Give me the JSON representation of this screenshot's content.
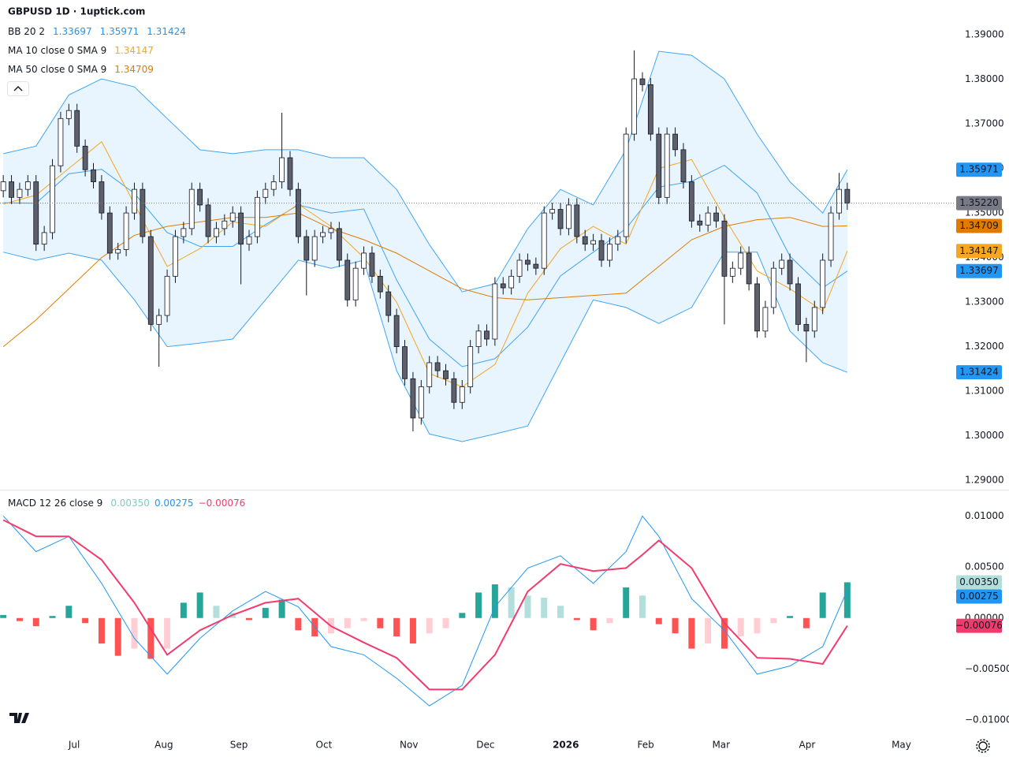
{
  "chart_data": [
    {
      "type": "candlestick",
      "title": "GBPUSD 1D · 1uptick.com",
      "up_color": "#ffffff",
      "down_color": "#5d606b",
      "border_color": "#131722",
      "open": [
        1.355,
        1.357,
        1.3535,
        1.3553,
        1.357,
        1.343,
        1.3456,
        1.3606,
        1.3712,
        1.373,
        1.365,
        1.3597,
        1.357,
        1.35,
        1.341,
        1.3418,
        1.35,
        1.3553,
        1.3447,
        1.325,
        1.327,
        1.3358,
        1.3447,
        1.3465,
        1.3553,
        1.3518,
        1.3447,
        1.3465,
        1.3482,
        1.35,
        1.343,
        1.3447,
        1.3535,
        1.3553,
        1.357,
        1.3624,
        1.3553,
        1.3447,
        1.3394,
        1.3447,
        1.3456,
        1.3465,
        1.3394,
        1.3305,
        1.3376,
        1.341,
        1.3358,
        1.3323,
        1.327,
        1.32,
        1.3128,
        1.304,
        1.311,
        1.3164,
        1.3146,
        1.3128,
        1.3075,
        1.311,
        1.32,
        1.3235,
        1.3217,
        1.3341,
        1.3332,
        1.3358,
        1.3394,
        1.3385,
        1.3376,
        1.35,
        1.3508,
        1.3465,
        1.3518,
        1.3447,
        1.343,
        1.3438,
        1.3394,
        1.343,
        1.3447,
        1.3677,
        1.3801,
        1.3788,
        1.3677,
        1.3535,
        1.3677,
        1.3642,
        1.357,
        1.3482,
        1.3473,
        1.35,
        1.3482,
        1.3358,
        1.3376,
        1.341,
        1.3341,
        1.3235,
        1.3288,
        1.3376,
        1.3394,
        1.3341,
        1.325,
        1.3235,
        1.3288,
        1.3394,
        1.35,
        1.3553
      ],
      "high": [
        1.3585,
        1.3585,
        1.3568,
        1.3585,
        1.3585,
        1.3471,
        1.3621,
        1.3727,
        1.3745,
        1.3745,
        1.3665,
        1.3612,
        1.3585,
        1.3515,
        1.3433,
        1.3515,
        1.3568,
        1.3568,
        1.3462,
        1.3285,
        1.3373,
        1.3462,
        1.348,
        1.3568,
        1.3568,
        1.3533,
        1.348,
        1.3497,
        1.3515,
        1.3515,
        1.3462,
        1.355,
        1.3568,
        1.3585,
        1.3725,
        1.3639,
        1.3568,
        1.3462,
        1.3462,
        1.3471,
        1.348,
        1.348,
        1.3409,
        1.3391,
        1.3425,
        1.3425,
        1.3373,
        1.3338,
        1.3285,
        1.3215,
        1.3143,
        1.3125,
        1.3179,
        1.3179,
        1.3161,
        1.3143,
        1.3125,
        1.3215,
        1.325,
        1.325,
        1.3356,
        1.3356,
        1.3373,
        1.3409,
        1.3409,
        1.34,
        1.3515,
        1.3523,
        1.3523,
        1.3533,
        1.3533,
        1.3462,
        1.3453,
        1.3453,
        1.3445,
        1.3462,
        1.3692,
        1.3865,
        1.3816,
        1.3803,
        1.3692,
        1.3692,
        1.3692,
        1.3657,
        1.3585,
        1.3497,
        1.3515,
        1.3515,
        1.3497,
        1.3391,
        1.3425,
        1.3425,
        1.3356,
        1.3303,
        1.3391,
        1.3409,
        1.3409,
        1.3356,
        1.3265,
        1.3303,
        1.3409,
        1.3515,
        1.359,
        1.3568
      ],
      "low": [
        1.3535,
        1.352,
        1.352,
        1.3538,
        1.3415,
        1.3415,
        1.3441,
        1.3591,
        1.3697,
        1.3635,
        1.3582,
        1.3555,
        1.3485,
        1.3395,
        1.3395,
        1.3403,
        1.3485,
        1.3432,
        1.3235,
        1.3155,
        1.3255,
        1.3343,
        1.3432,
        1.345,
        1.3503,
        1.3432,
        1.3432,
        1.345,
        1.3467,
        1.334,
        1.3415,
        1.3432,
        1.352,
        1.3538,
        1.3555,
        1.3538,
        1.3432,
        1.3315,
        1.3379,
        1.3432,
        1.3441,
        1.3379,
        1.329,
        1.329,
        1.3361,
        1.3343,
        1.3308,
        1.3255,
        1.3185,
        1.3113,
        1.301,
        1.3025,
        1.3095,
        1.3131,
        1.3113,
        1.306,
        1.306,
        1.3095,
        1.3185,
        1.3202,
        1.3202,
        1.3317,
        1.3317,
        1.3343,
        1.337,
        1.3361,
        1.3361,
        1.3485,
        1.345,
        1.345,
        1.3432,
        1.3415,
        1.3415,
        1.3379,
        1.3379,
        1.3415,
        1.3432,
        1.3662,
        1.3773,
        1.3662,
        1.352,
        1.352,
        1.3627,
        1.3555,
        1.3467,
        1.3458,
        1.3458,
        1.3467,
        1.325,
        1.3343,
        1.3361,
        1.3326,
        1.322,
        1.322,
        1.3273,
        1.3361,
        1.3326,
        1.3235,
        1.3165,
        1.322,
        1.3273,
        1.3379,
        1.3485,
        1.3507
      ],
      "close": [
        1.357,
        1.3535,
        1.3553,
        1.357,
        1.343,
        1.3456,
        1.3606,
        1.3712,
        1.373,
        1.365,
        1.3597,
        1.357,
        1.35,
        1.341,
        1.3418,
        1.35,
        1.3553,
        1.3447,
        1.325,
        1.327,
        1.3358,
        1.3447,
        1.3465,
        1.3553,
        1.3518,
        1.3447,
        1.3465,
        1.3482,
        1.35,
        1.343,
        1.3447,
        1.3535,
        1.3553,
        1.357,
        1.3624,
        1.3553,
        1.3447,
        1.3394,
        1.3447,
        1.3456,
        1.3465,
        1.3394,
        1.3305,
        1.3376,
        1.341,
        1.3358,
        1.3323,
        1.327,
        1.32,
        1.3128,
        1.304,
        1.311,
        1.3164,
        1.3146,
        1.3128,
        1.3075,
        1.311,
        1.32,
        1.3235,
        1.3217,
        1.3341,
        1.3332,
        1.3358,
        1.3394,
        1.3385,
        1.3376,
        1.35,
        1.3508,
        1.3465,
        1.3518,
        1.3447,
        1.343,
        1.3438,
        1.3394,
        1.343,
        1.3447,
        1.3677,
        1.3801,
        1.3788,
        1.3677,
        1.3535,
        1.3677,
        1.3642,
        1.357,
        1.3482,
        1.3473,
        1.35,
        1.3482,
        1.3358,
        1.3376,
        1.341,
        1.3341,
        1.3235,
        1.3288,
        1.3376,
        1.3394,
        1.3341,
        1.325,
        1.3235,
        1.3288,
        1.3394,
        1.35,
        1.3553,
        1.3522
      ],
      "last_price": {
        "value": 1.3522,
        "label": "1.35220",
        "color": "#787b86"
      },
      "xlim": [
        -0.4,
        116
      ],
      "xticks": [
        {
          "value": 8.65,
          "label": "Jul"
        },
        {
          "value": 19.6,
          "label": "Aug"
        },
        {
          "value": 28.75,
          "label": "Sep"
        },
        {
          "value": 39.13,
          "label": "Oct"
        },
        {
          "value": 49.5,
          "label": "Nov"
        },
        {
          "value": 58.85,
          "label": "Dec"
        },
        {
          "value": 68.65,
          "label": "2026",
          "bold": true
        },
        {
          "value": 78.4,
          "label": "Feb"
        },
        {
          "value": 87.6,
          "label": "Mar"
        },
        {
          "value": 98.1,
          "label": "Apr"
        },
        {
          "value": 109.6,
          "label": "May"
        }
      ],
      "ylim": [
        1.2879,
        1.3978
      ],
      "yticks": [
        {
          "value": 1.39,
          "label": "1.39000"
        },
        {
          "value": 1.38,
          "label": "1.38000"
        },
        {
          "value": 1.37,
          "label": "1.37000"
        },
        {
          "value": 1.36,
          "label": "1.36000"
        },
        {
          "value": 1.35,
          "label": "1.35000"
        },
        {
          "value": 1.34,
          "label": "1.34000"
        },
        {
          "value": 1.33,
          "label": "1.33000"
        },
        {
          "value": 1.32,
          "label": "1.32000"
        },
        {
          "value": 1.31,
          "label": "1.31000"
        },
        {
          "value": 1.3,
          "label": "1.30000"
        },
        {
          "value": 1.29,
          "label": "1.29000"
        }
      ],
      "grid": true,
      "overlays": [
        {
          "type": "band",
          "name": "BB 20 2",
          "color": "#2196f3",
          "fill": "rgba(33,150,243,0.1)",
          "x": [
            0,
            4,
            8,
            12,
            16,
            20,
            24,
            28,
            32,
            36,
            40,
            44,
            48,
            52,
            56,
            60,
            64,
            68,
            72,
            76,
            80,
            84,
            88,
            92,
            96,
            100,
            103
          ],
          "lines": [
            {
              "values": [
                1.3523,
                1.3522,
                1.3588,
                1.3598,
                1.3544,
                1.3456,
                1.3425,
                1.3425,
                1.3474,
                1.3518,
                1.35,
                1.3509,
                1.335,
                1.3217,
                1.3155,
                1.3173,
                1.3244,
                1.3359,
                1.3412,
                1.3465,
                1.3558,
                1.3571,
                1.3607,
                1.3545,
                1.3403,
                1.3332,
                1.33697
              ],
              "last": {
                "value": 1.33697,
                "label": "1.33697"
              }
            },
            {
              "values": [
                1.3633,
                1.365,
                1.3765,
                1.3801,
                1.3783,
                1.3712,
                1.3642,
                1.3633,
                1.3642,
                1.3642,
                1.3624,
                1.3624,
                1.3553,
                1.3429,
                1.3323,
                1.3341,
                1.3465,
                1.3553,
                1.3518,
                1.3642,
                1.3863,
                1.3854,
                1.3801,
                1.3677,
                1.357,
                1.35,
                1.35971
              ],
              "last": {
                "value": 1.35971,
                "label": "1.35971"
              }
            },
            {
              "values": [
                1.3412,
                1.3394,
                1.341,
                1.3394,
                1.3305,
                1.32,
                1.3208,
                1.3217,
                1.3305,
                1.3394,
                1.3376,
                1.3394,
                1.3146,
                1.3004,
                1.2987,
                1.3004,
                1.3022,
                1.3164,
                1.3305,
                1.3288,
                1.3252,
                1.3288,
                1.3412,
                1.3412,
                1.3235,
                1.3164,
                1.31424
              ],
              "last": {
                "value": 1.31424,
                "label": "1.31424"
              }
            }
          ]
        },
        {
          "type": "line",
          "name": "MA 10 close 0 SMA 9",
          "color": "#f5a623",
          "x": [
            0,
            4,
            8,
            12,
            16,
            20,
            24,
            28,
            32,
            36,
            40,
            44,
            48,
            52,
            56,
            60,
            64,
            68,
            72,
            76,
            80,
            84,
            88,
            92,
            96,
            100,
            103
          ],
          "values": [
            1.352,
            1.354,
            1.36,
            1.366,
            1.352,
            1.338,
            1.342,
            1.348,
            1.347,
            1.352,
            1.347,
            1.34,
            1.33,
            1.314,
            1.311,
            1.316,
            1.332,
            1.342,
            1.347,
            1.343,
            1.36,
            1.362,
            1.349,
            1.337,
            1.333,
            1.328,
            1.34147
          ],
          "last": {
            "value": 1.34147,
            "label": "1.34147"
          }
        },
        {
          "type": "line",
          "name": "MA 50 close 0 SMA 9",
          "color": "#e07b00",
          "x": [
            0,
            4,
            8,
            12,
            16,
            20,
            24,
            28,
            32,
            36,
            40,
            44,
            48,
            52,
            56,
            60,
            64,
            68,
            72,
            76,
            80,
            84,
            88,
            92,
            96,
            100,
            103
          ],
          "values": [
            1.32,
            1.326,
            1.333,
            1.34,
            1.345,
            1.347,
            1.348,
            1.349,
            1.349,
            1.35,
            1.3465,
            1.344,
            1.341,
            1.337,
            1.333,
            1.331,
            1.3305,
            1.331,
            1.3315,
            1.332,
            1.338,
            1.344,
            1.347,
            1.3485,
            1.349,
            1.347,
            1.34709
          ],
          "last": {
            "value": 1.34709,
            "label": "1.34709"
          }
        }
      ]
    },
    {
      "type": "macd",
      "name": "MACD 12 26 close 9",
      "ylim": [
        -0.0113,
        0.0125
      ],
      "yticks": [
        {
          "value": 0.01,
          "label": "0.01000"
        },
        {
          "value": 0.005,
          "label": "0.00500"
        },
        {
          "value": 0,
          "label": "0.00000"
        },
        {
          "value": -0.005,
          "label": "−0.00500"
        },
        {
          "value": -0.01,
          "label": "−0.01000"
        }
      ],
      "histogram": {
        "colors": [
          "#26a69a",
          "#b2dfdb",
          "#ffcdd2",
          "#ff5252"
        ],
        "badge_color": "#b2dfdb",
        "badge_text_color": "#131722",
        "legend_color": "#80cbc4",
        "x": [
          0,
          2,
          4,
          6,
          8,
          10,
          12,
          14,
          16,
          18,
          20,
          22,
          24,
          26,
          28,
          30,
          32,
          34,
          36,
          38,
          40,
          42,
          44,
          46,
          48,
          50,
          52,
          54,
          56,
          58,
          60,
          62,
          64,
          66,
          68,
          70,
          72,
          74,
          76,
          78,
          80,
          82,
          84,
          86,
          88,
          90,
          92,
          94,
          96,
          98,
          100,
          103
        ],
        "values": [
          0.0003,
          -0.0003,
          -0.0008,
          0.0002,
          0.0012,
          -0.0005,
          -0.0025,
          -0.0037,
          -0.003,
          -0.004,
          -0.003,
          0.0015,
          0.0025,
          0.0012,
          0.0005,
          -0.0002,
          0.001,
          0.0018,
          -0.0012,
          -0.0018,
          -0.0015,
          -0.001,
          -0.0003,
          -0.001,
          -0.0018,
          -0.0025,
          -0.0015,
          -0.001,
          0.0005,
          0.0025,
          0.0033,
          0.003,
          0.0022,
          0.002,
          0.0012,
          -0.0002,
          -0.0012,
          -0.0005,
          0.003,
          0.0022,
          -0.0006,
          -0.0015,
          -0.003,
          -0.0025,
          -0.003,
          -0.0018,
          -0.0015,
          -0.0005,
          0.0002,
          -0.001,
          0.0025,
          0.0035
        ],
        "last": {
          "value": 0.0035,
          "label": "0.00350"
        }
      },
      "macd": {
        "color": "#2196f3",
        "x": [
          0,
          4,
          8,
          12,
          16,
          20,
          24,
          28,
          32,
          36,
          40,
          44,
          48,
          52,
          56,
          60,
          64,
          68,
          72,
          76,
          78,
          80,
          84,
          88,
          92,
          96,
          100,
          103
        ],
        "values": [
          0.01,
          0.0065,
          0.008,
          0.0034,
          -0.002,
          -0.0055,
          -0.002,
          0.0007,
          0.0026,
          0.0011,
          -0.0028,
          -0.0036,
          -0.0059,
          -0.0086,
          -0.0066,
          0.0011,
          0.0049,
          0.0061,
          0.0034,
          0.0065,
          0.01,
          0.008,
          0.0019,
          -0.0012,
          -0.0055,
          -0.0047,
          -0.0028,
          0.00275
        ],
        "last": {
          "value": 0.00275,
          "label": "0.00275"
        }
      },
      "signal": {
        "color": "#f23b6d",
        "x": [
          0,
          4,
          8,
          12,
          16,
          20,
          24,
          28,
          32,
          36,
          40,
          44,
          48,
          52,
          56,
          60,
          64,
          68,
          72,
          76,
          78,
          80,
          84,
          88,
          92,
          96,
          100,
          103
        ],
        "values": [
          0.0096,
          0.008,
          0.008,
          0.0057,
          0.0015,
          -0.0036,
          -0.0012,
          0.0003,
          0.0015,
          0.0019,
          -0.0008,
          -0.0024,
          -0.0039,
          -0.007,
          -0.007,
          -0.0036,
          0.0026,
          0.0053,
          0.0046,
          0.0049,
          0.0062,
          0.0076,
          0.0049,
          -0.0005,
          -0.0039,
          -0.004,
          -0.0045,
          -0.00076
        ],
        "last": {
          "value": -0.00076,
          "label": "−0.00076"
        }
      }
    }
  ]
}
